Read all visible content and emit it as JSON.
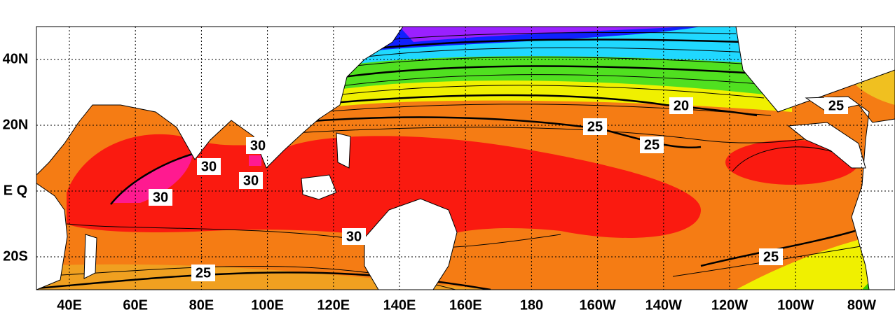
{
  "x_axis": {
    "labels": [
      "40E",
      "60E",
      "80E",
      "100E",
      "120E",
      "140E",
      "160E",
      "180",
      "160W",
      "140W",
      "120W",
      "100W",
      "80W"
    ]
  },
  "y_axis": {
    "labels": [
      "40N",
      "20N",
      "E Q",
      "20S"
    ]
  },
  "contour_labels": [
    "30",
    "30",
    "30",
    "30",
    "30",
    "25",
    "25",
    "25",
    "25",
    "25",
    "20"
  ]
}
